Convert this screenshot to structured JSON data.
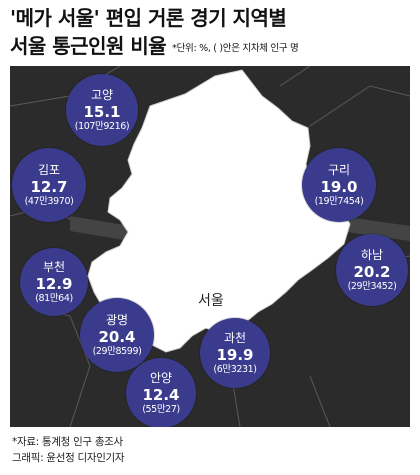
{
  "title": {
    "line1": "'메가 서울' 편입 거론 경기 지역별",
    "line2": "서울 통근인원 비율",
    "unit_note": "*단위: %, ( )안은 지차체 인구 명"
  },
  "map": {
    "center_label": "서울"
  },
  "regions": [
    {
      "name": "고양",
      "value": "15.1",
      "population": "(107만9216)"
    },
    {
      "name": "김포",
      "value": "12.7",
      "population": "(47만3970)"
    },
    {
      "name": "부천",
      "value": "12.9",
      "population": "(81만64)"
    },
    {
      "name": "광명",
      "value": "20.4",
      "population": "(29만8599)"
    },
    {
      "name": "안양",
      "value": "12.4",
      "population": "(55만27)"
    },
    {
      "name": "과천",
      "value": "19.9",
      "population": "(6만3231)"
    },
    {
      "name": "하남",
      "value": "20.2",
      "population": "(29만3452)"
    },
    {
      "name": "구리",
      "value": "19.0",
      "population": "(19만7454)"
    }
  ],
  "footer": {
    "source": "*자료: 통계청 인구 총조사",
    "credit": "그래픽: 윤선정 디자인기자"
  },
  "colors": {
    "bubble": "#3a3b8c",
    "background": "#2b2b2b",
    "seoul": "#ffffff"
  }
}
